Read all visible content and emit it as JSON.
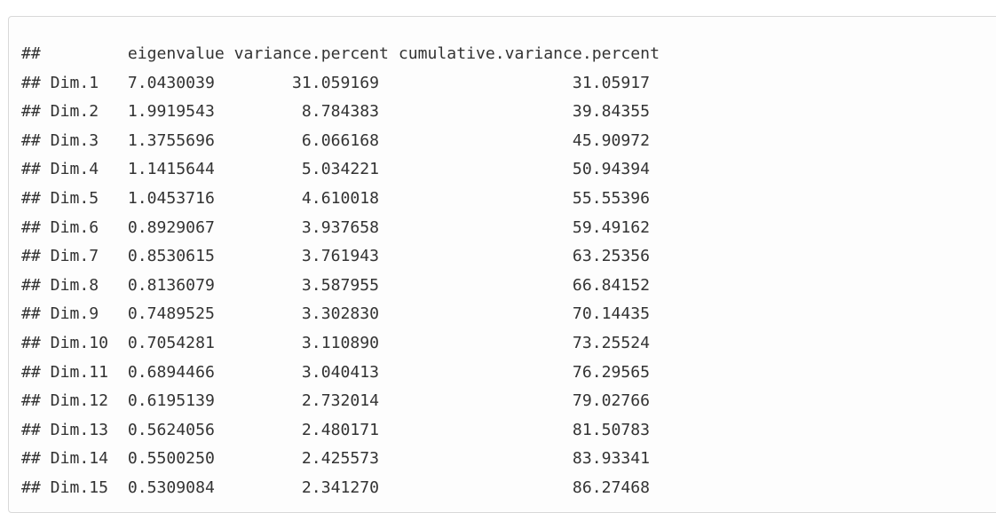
{
  "output": {
    "lines": [
      "##         eigenvalue variance.percent cumulative.variance.percent",
      "## Dim.1   7.0430039        31.059169                    31.05917",
      "## Dim.2   1.9919543         8.784383                    39.84355",
      "## Dim.3   1.3755696         6.066168                    45.90972",
      "## Dim.4   1.1415644         5.034221                    50.94394",
      "## Dim.5   1.0453716         4.610018                    55.55396",
      "## Dim.6   0.8929067         3.937658                    59.49162",
      "## Dim.7   0.8530615         3.761943                    63.25356",
      "## Dim.8   0.8136079         3.587955                    66.84152",
      "## Dim.9   0.7489525         3.302830                    70.14435",
      "## Dim.10  0.7054281         3.110890                    73.25524",
      "## Dim.11  0.6894466         3.040413                    76.29565",
      "## Dim.12  0.6195139         2.732014                    79.02766",
      "## Dim.13  0.5624056         2.480171                    81.50783",
      "## Dim.14  0.5500250         2.425573                    83.93341",
      "## Dim.15  0.5309084         2.341270                    86.27468"
    ]
  }
}
